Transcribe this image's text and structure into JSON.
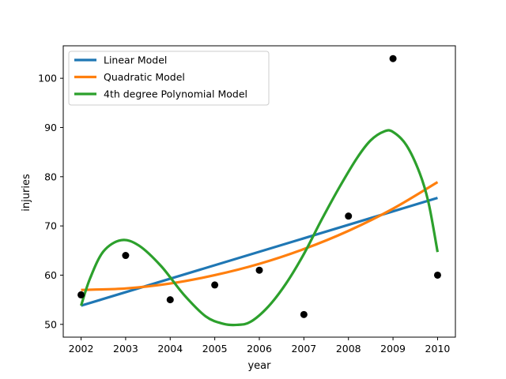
{
  "chart_data": {
    "type": "scatter",
    "title": "",
    "xlabel": "year",
    "ylabel": "injuries",
    "xlim": [
      2001.6,
      2010.4
    ],
    "ylim": [
      47.4,
      106.6
    ],
    "xticks": [
      2002,
      2003,
      2004,
      2005,
      2006,
      2007,
      2008,
      2009,
      2010
    ],
    "yticks": [
      50,
      60,
      70,
      80,
      90,
      100
    ],
    "grid": false,
    "legend_position": "top-left",
    "points": {
      "x": [
        2002,
        2003,
        2004,
        2005,
        2006,
        2007,
        2008,
        2009,
        2010
      ],
      "y": [
        56,
        64,
        55,
        58,
        61,
        52,
        72,
        104,
        60
      ],
      "color": "#000000"
    },
    "series": [
      {
        "name": "Linear Model",
        "color": "#1f77b4",
        "x": [
          2002,
          2010
        ],
        "y": [
          53.8,
          75.7
        ]
      },
      {
        "name": "Quadratic Model",
        "color": "#ff7f0e",
        "x": [
          2002,
          2003,
          2004,
          2005,
          2006,
          2007,
          2008,
          2009,
          2010
        ],
        "y": [
          57.0,
          57.3,
          58.3,
          60.0,
          62.3,
          65.3,
          69.0,
          73.5,
          78.9
        ]
      },
      {
        "name": "4th degree Polynomial Model",
        "color": "#2ca02c",
        "x": [
          2002,
          2002.2,
          2002.5,
          2002.9,
          2003.3,
          2003.8,
          2004.3,
          2004.8,
          2005.2,
          2005.5,
          2005.8,
          2006.2,
          2006.6,
          2007.0,
          2007.4,
          2007.8,
          2008.2,
          2008.5,
          2008.8,
          2009.0,
          2009.3,
          2009.6,
          2009.8,
          2010
        ],
        "y": [
          53.8,
          59.3,
          64.8,
          67.1,
          66.0,
          61.8,
          56.1,
          51.6,
          50.1,
          49.9,
          50.5,
          53.6,
          58.3,
          64.3,
          71.3,
          77.9,
          83.9,
          87.4,
          89.2,
          89.1,
          86.4,
          80.7,
          74.6,
          64.7
        ]
      }
    ]
  }
}
